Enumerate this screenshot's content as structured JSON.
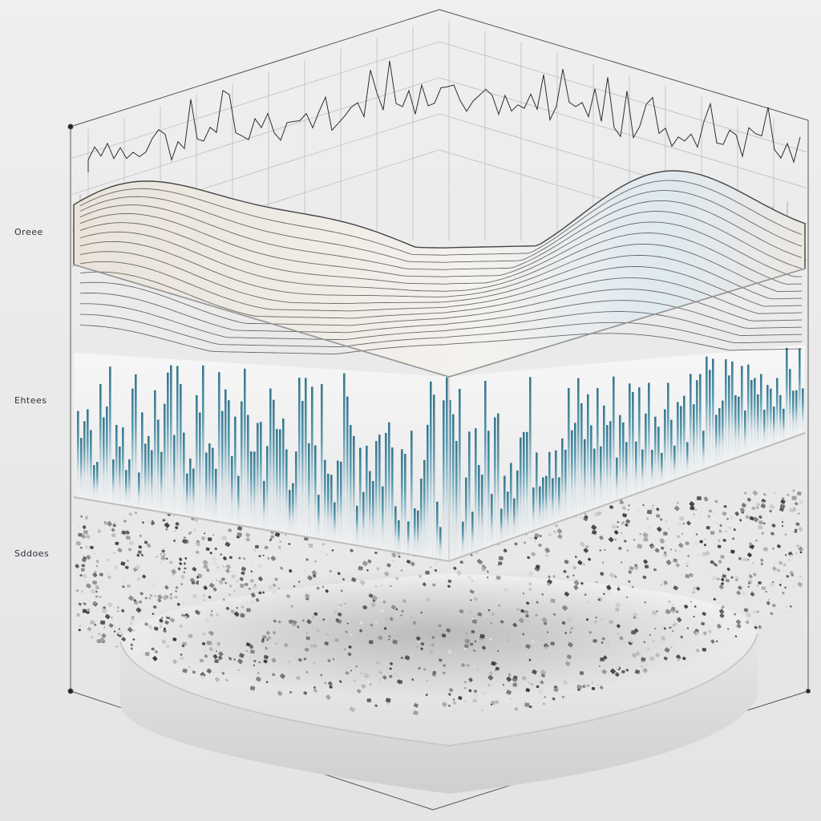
{
  "labels": {
    "top": "Oreee",
    "middle": "Ehtees",
    "bottom": "Sddoes"
  },
  "layers": [
    "wave-contour-surface",
    "spike-signal-layer",
    "particle-layer"
  ],
  "colors": {
    "background": "#ebebeb",
    "surface_light": "#f3f1ed",
    "contour_line": "#3b3b3b",
    "spike_teal": "#1f6e86",
    "spike_light": "#d7e4ea",
    "particle_dark": "#3c3c3c",
    "particle_light": "#cfcfcf",
    "pedestal": "#e9e9e9"
  }
}
